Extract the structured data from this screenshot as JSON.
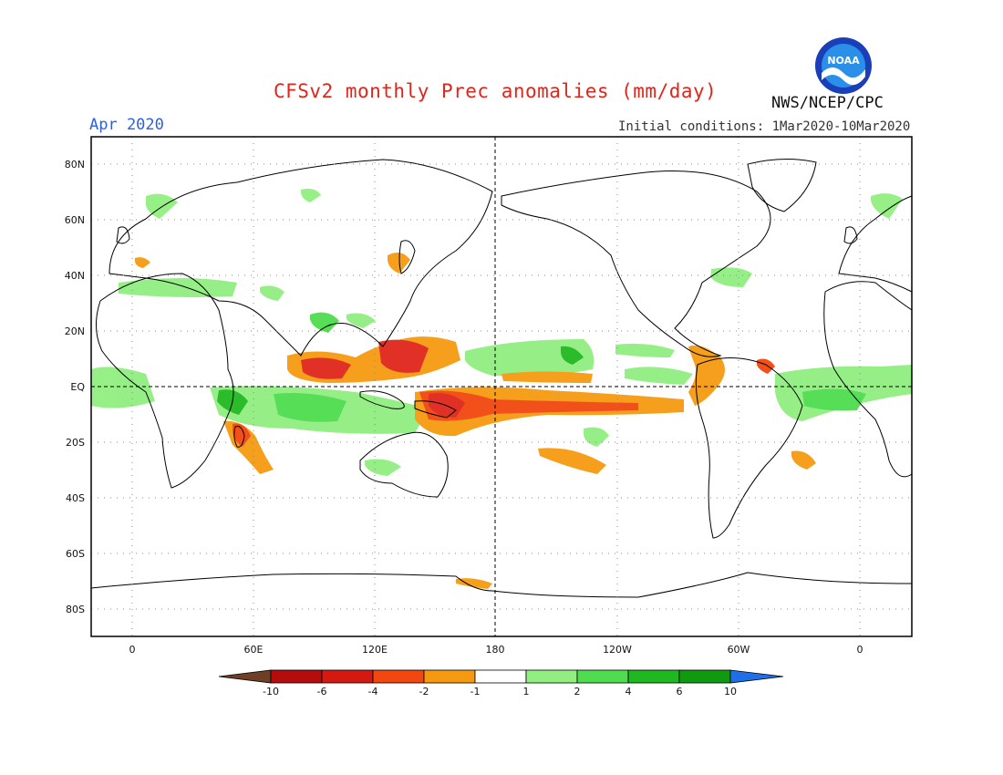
{
  "header": {
    "title": "CFSv2 monthly Prec anomalies (mm/day)",
    "month": "Apr 2020",
    "initial_conditions": "Initial conditions: 1Mar2020-10Mar2020",
    "agency": "NWS/NCEP/CPC",
    "logo_text": "NOAA"
  },
  "map": {
    "lat_labels": [
      "80N",
      "60N",
      "40N",
      "20N",
      "EQ",
      "20S",
      "40S",
      "60S",
      "80S"
    ],
    "lon_labels": [
      "0",
      "60E",
      "120E",
      "180",
      "120W",
      "60W",
      "0"
    ]
  },
  "colorbar": {
    "labels": [
      "-10",
      "-6",
      "-4",
      "-2",
      "-1",
      "1",
      "2",
      "4",
      "6",
      "10"
    ],
    "colors": [
      "#6e3f25",
      "#b50d0d",
      "#d41a10",
      "#f2470f",
      "#f59a10",
      "#ffffff",
      "#90ef80",
      "#4fdd4f",
      "#20b820",
      "#0f9a0f",
      "#1f6fe8"
    ]
  },
  "anomaly_colors": {
    "dry_strong": "#e0261c",
    "dry_medium": "#f2470f",
    "dry_light": "#f59a10",
    "wet_light": "#90ef80",
    "wet_medium": "#4fdd4f",
    "wet_strong": "#20b820"
  }
}
